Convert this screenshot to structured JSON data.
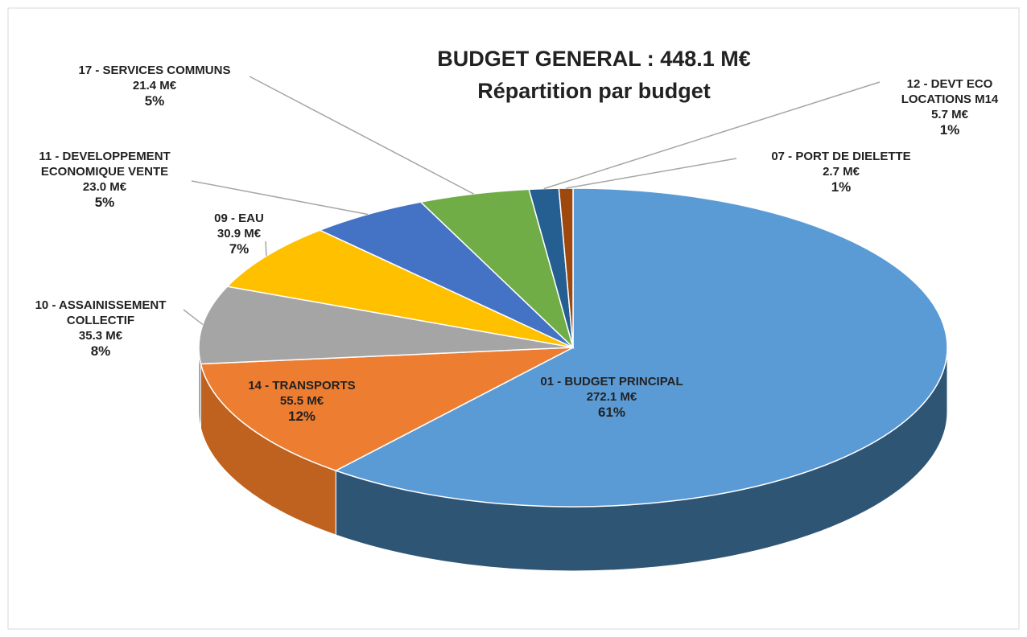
{
  "chart_data": {
    "type": "pie",
    "title": "BUDGET GENERAL : 448.1 M€",
    "subtitle": "Répartition par budget",
    "categories": [
      "01 - BUDGET PRINCIPAL",
      "14 - TRANSPORTS",
      "10 - ASSAINISSEMENT COLLECTIF",
      "09 - EAU",
      "11 - DEVELOPPEMENT ECONOMIQUE VENTE",
      "17 - SERVICES COMMUNS",
      "12 - DEVT ECO LOCATIONS M14",
      "07 - PORT DE DIELETTE"
    ],
    "values": [
      272.1,
      55.5,
      35.3,
      30.9,
      23.0,
      21.4,
      5.7,
      2.7
    ],
    "value_labels": [
      "272.1 M€",
      "55.5 M€",
      "35.3 M€",
      "30.9 M€",
      "23.0 M€",
      "21.4 M€",
      "5.7 M€",
      "2.7 M€"
    ],
    "percent_labels": [
      "61%",
      "12%",
      "8%",
      "7%",
      "5%",
      "5%",
      "1%",
      "1%"
    ],
    "colors": [
      "#5b9bd5",
      "#ed7d31",
      "#a5a5a5",
      "#ffc000",
      "#4472c4",
      "#70ad47",
      "#255e91",
      "#9e480e"
    ],
    "side_colors": [
      "#2f5575",
      "#c0621f",
      "#7f7f7f",
      "#c89600",
      "#2f5597",
      "#4f8131",
      "#1a4266",
      "#6e320a"
    ]
  }
}
